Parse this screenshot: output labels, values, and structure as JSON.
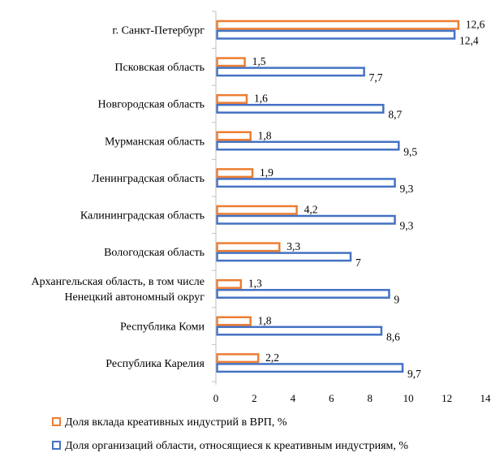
{
  "chart_data": {
    "type": "bar",
    "orientation": "horizontal",
    "categories": [
      [
        "г. Санкт-Петербург"
      ],
      [
        "Псковская  область"
      ],
      [
        "Новгородская  область"
      ],
      [
        "Мурманская  область"
      ],
      [
        "Ленинградская  область"
      ],
      [
        "Калининградская  область"
      ],
      [
        "Вологодская  область"
      ],
      [
        "Архангельская  область, в том числе",
        "Ненецкий автономный округ"
      ],
      [
        "Республика Коми"
      ],
      [
        "Республика Карелия"
      ]
    ],
    "series": [
      {
        "name": "Доля вклада креативных индустрий в ВРП, %",
        "color": "#ED7D31",
        "values": [
          12.6,
          1.5,
          1.6,
          1.8,
          1.9,
          4.2,
          3.3,
          1.3,
          1.8,
          2.2
        ],
        "labels": [
          "12,6",
          "1,5",
          "1,6",
          "1,8",
          "1,9",
          "4,2",
          "3,3",
          "1,3",
          "1,8",
          "2,2"
        ]
      },
      {
        "name": "Доля организаций области, относящиеся  к креативным индустриям, %",
        "color": "#4472C4",
        "values": [
          12.4,
          7.7,
          8.7,
          9.5,
          9.3,
          9.3,
          7,
          9,
          8.6,
          9.7
        ],
        "labels": [
          "12,4",
          "7,7",
          "8,7",
          "9,5",
          "9,3",
          "9,3",
          "7",
          "9",
          "8,6",
          "9,7"
        ]
      }
    ],
    "xlim": [
      0,
      14
    ],
    "xticks": [
      0,
      2,
      4,
      6,
      8,
      10,
      12,
      14
    ],
    "xtick_labels": [
      "0",
      "2",
      "4",
      "6",
      "8",
      "10",
      "12",
      "14"
    ],
    "grid": false,
    "legend_position": "bottom-left",
    "title": "",
    "xlabel": "",
    "ylabel": ""
  }
}
